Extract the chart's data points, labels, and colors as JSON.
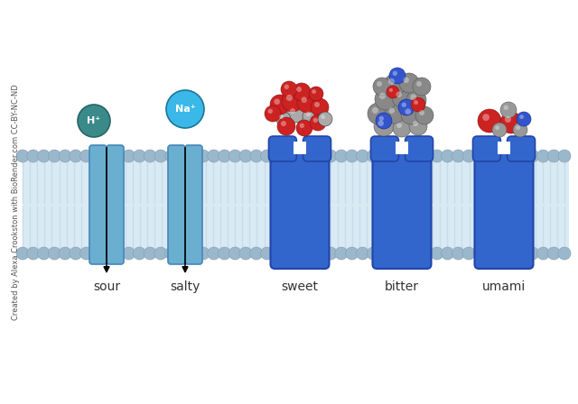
{
  "background_color": "#ffffff",
  "lipid_head_color": "#9ab8cc",
  "lipid_tail_color": "#c8dde8",
  "lipid_body_color": "#daeaf5",
  "channel_color": "#6aaed0",
  "channel_dark": "#4488b8",
  "gpcr_color": "#3366cc",
  "gpcr_edge": "#2244aa",
  "labels": [
    "sour",
    "salty",
    "sweet",
    "bitter",
    "umami"
  ],
  "label_fontsize": 10,
  "watermark_text": "Created by Alexa Crookston with BioRender.com CC-BY-NC-ND",
  "watermark_fontsize": 6.0,
  "ion_H_color": "#3a8a8a",
  "ion_Na_color": "#3ab8e8"
}
